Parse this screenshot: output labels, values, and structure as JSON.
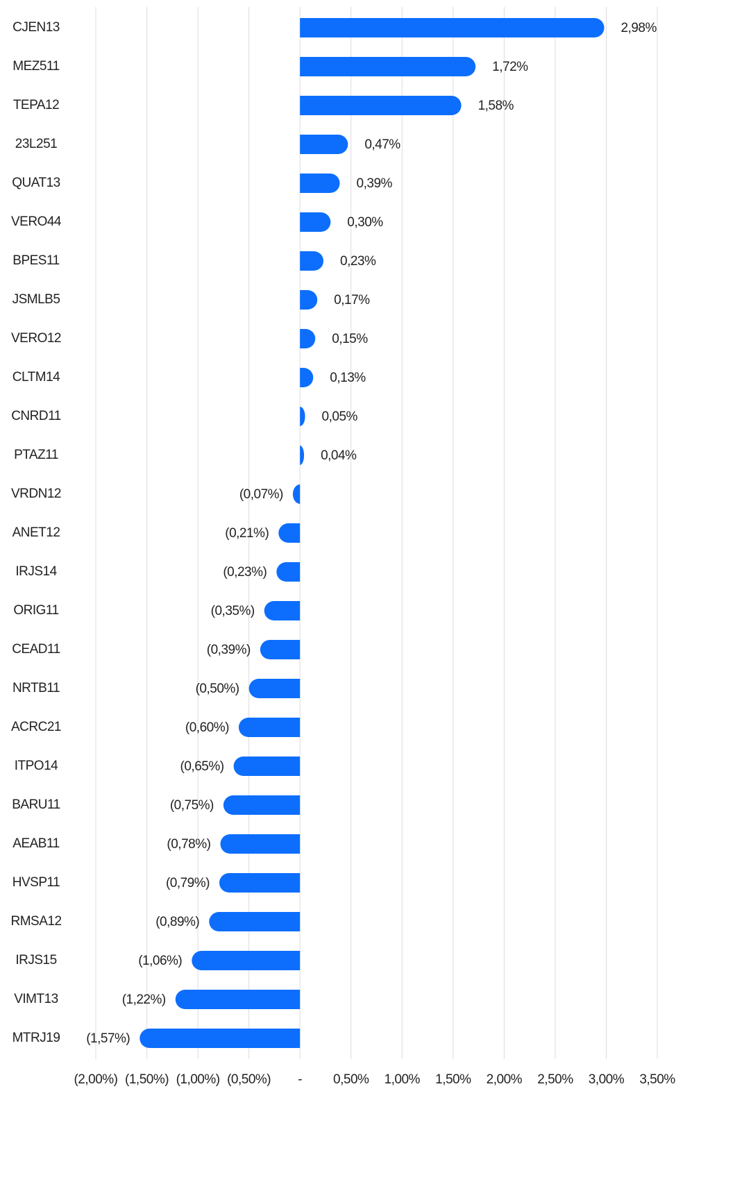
{
  "chart_data": {
    "type": "barh",
    "categories": [
      "CJEN13",
      "MEZ511",
      "TEPA12",
      "23L251",
      "QUAT13",
      "VERO44",
      "BPES11",
      "JSMLB5",
      "VERO12",
      "CLTM14",
      "CNRD11",
      "PTAZ11",
      "VRDN12",
      "ANET12",
      "IRJS14",
      "ORIG11",
      "CEAD11",
      "NRTB11",
      "ACRC21",
      "ITPO14",
      "BARU11",
      "AEAB11",
      "HVSP11",
      "RMSA12",
      "IRJS15",
      "VIMT13",
      "MTRJ19"
    ],
    "values": [
      2.98,
      1.72,
      1.58,
      0.47,
      0.39,
      0.3,
      0.23,
      0.17,
      0.15,
      0.13,
      0.05,
      0.04,
      -0.07,
      -0.21,
      -0.23,
      -0.35,
      -0.39,
      -0.5,
      -0.6,
      -0.65,
      -0.75,
      -0.78,
      -0.79,
      -0.89,
      -1.06,
      -1.22,
      -1.57
    ],
    "value_labels": [
      "2,98%",
      "1,72%",
      "1,58%",
      "0,47%",
      "0,39%",
      "0,30%",
      "0,23%",
      "0,17%",
      "0,15%",
      "0,13%",
      "0,05%",
      "0,04%",
      "(0,07%)",
      "(0,21%)",
      "(0,23%)",
      "(0,35%)",
      "(0,39%)",
      "(0,50%)",
      "(0,60%)",
      "(0,65%)",
      "(0,75%)",
      "(0,78%)",
      "(0,79%)",
      "(0,89%)",
      "(1,06%)",
      "(1,22%)",
      "(1,57%)"
    ],
    "color": "#0d6efd",
    "xlim": [
      -2,
      3.5
    ],
    "xticks": [
      {
        "value": -2,
        "label": "(2,00%)"
      },
      {
        "value": -1.5,
        "label": "(1,50%)"
      },
      {
        "value": -1,
        "label": "(1,00%)"
      },
      {
        "value": -0.5,
        "label": "(0,50%)"
      },
      {
        "value": 0,
        "label": "-"
      },
      {
        "value": 0.5,
        "label": "0,50%"
      },
      {
        "value": 1,
        "label": "1,00%"
      },
      {
        "value": 1.5,
        "label": "1,50%"
      },
      {
        "value": 2,
        "label": "2,00%"
      },
      {
        "value": 2.5,
        "label": "2,50%"
      },
      {
        "value": 3,
        "label": "3,00%"
      },
      {
        "value": 3.5,
        "label": "3,50%"
      }
    ],
    "grid": true
  }
}
